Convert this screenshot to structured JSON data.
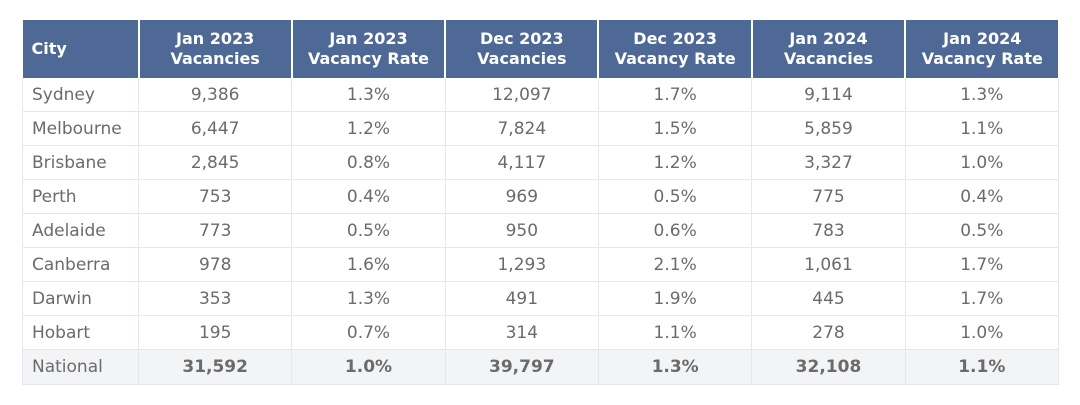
{
  "chart_data": {
    "type": "table",
    "columns": [
      [
        "City"
      ],
      [
        "Jan 2023",
        "Vacancies"
      ],
      [
        "Jan 2023",
        "Vacancy Rate"
      ],
      [
        "Dec 2023",
        "Vacancies"
      ],
      [
        "Dec 2023",
        "Vacancy Rate"
      ],
      [
        "Jan 2024",
        "Vacancies"
      ],
      [
        "Jan 2024",
        "Vacancy Rate"
      ]
    ],
    "rows": [
      [
        "Sydney",
        "9,386",
        "1.3%",
        "12,097",
        "1.7%",
        "9,114",
        "1.3%"
      ],
      [
        "Melbourne",
        "6,447",
        "1.2%",
        "7,824",
        "1.5%",
        "5,859",
        "1.1%"
      ],
      [
        "Brisbane",
        "2,845",
        "0.8%",
        "4,117",
        "1.2%",
        "3,327",
        "1.0%"
      ],
      [
        "Perth",
        "753",
        "0.4%",
        "969",
        "0.5%",
        "775",
        "0.4%"
      ],
      [
        "Adelaide",
        "773",
        "0.5%",
        "950",
        "0.6%",
        "783",
        "0.5%"
      ],
      [
        "Canberra",
        "978",
        "1.6%",
        "1,293",
        "2.1%",
        "1,061",
        "1.7%"
      ],
      [
        "Darwin",
        "353",
        "1.3%",
        "491",
        "1.9%",
        "445",
        "1.7%"
      ],
      [
        "Hobart",
        "195",
        "0.7%",
        "314",
        "1.1%",
        "278",
        "1.0%"
      ],
      [
        "National",
        "31,592",
        "1.0%",
        "39,797",
        "1.3%",
        "32,108",
        "1.1%"
      ]
    ],
    "colors": {
      "header_bg": "#4f6996",
      "header_text": "#ffffff",
      "body_text": "#6b6b6b",
      "grid": "#e4e7eb",
      "total_row_bg": "#f3f4f6"
    }
  }
}
